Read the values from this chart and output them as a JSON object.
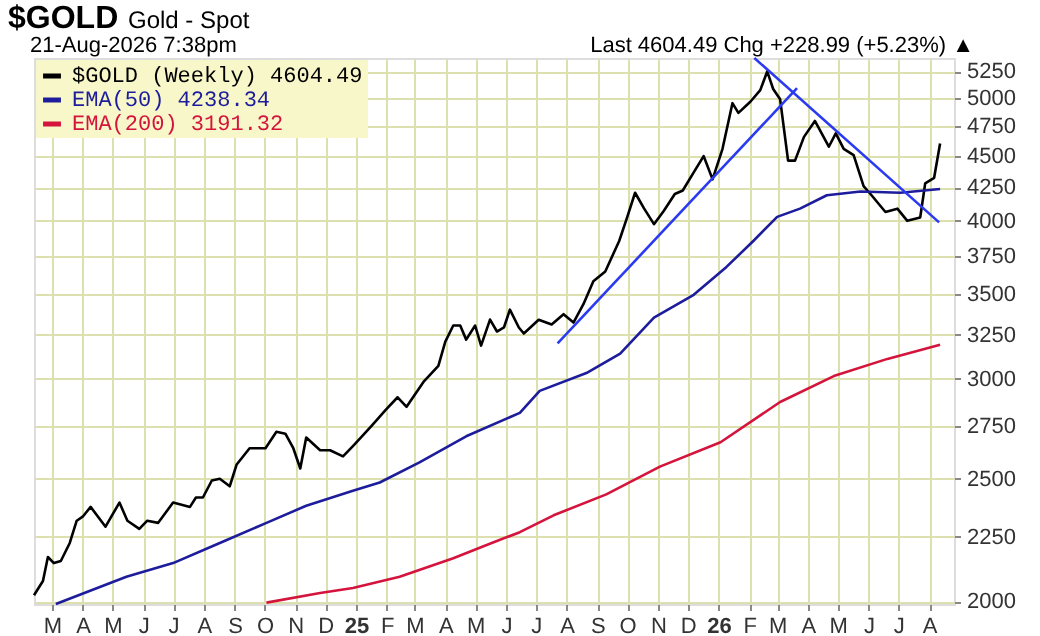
{
  "chart_data": {
    "type": "line",
    "title": "$GOLD",
    "subtitle": "Gold - Spot",
    "annotations": [
      "21-Aug-2026 7:38pm",
      "Last 4604.49  Chg +228.99 (+5.23%) ▲"
    ],
    "series": [
      {
        "name": "$GOLD (Weekly) 4604.49",
        "color": "#000000",
        "x": [
          "2024-02-12",
          "2024-02-21",
          "2024-02-26",
          "2024-03-03",
          "2024-03-10",
          "2024-03-19",
          "2024-03-26",
          "2024-04-01",
          "2024-04-09",
          "2024-04-24",
          "2024-05-08",
          "2024-05-16",
          "2024-05-28",
          "2024-06-05",
          "2024-06-16",
          "2024-07-01",
          "2024-07-18",
          "2024-07-24",
          "2024-07-31",
          "2024-08-09",
          "2024-08-17",
          "2024-08-27",
          "2024-09-03",
          "2024-09-16",
          "2024-10-02",
          "2024-10-13",
          "2024-10-22",
          "2024-10-30",
          "2024-11-06",
          "2024-11-12",
          "2024-11-26",
          "2024-12-06",
          "2024-12-19",
          "2024-12-29",
          "2025-01-08",
          "2025-01-17",
          "2025-01-31",
          "2025-02-12",
          "2025-02-21",
          "2025-03-10",
          "2025-03-25",
          "2025-04-01",
          "2025-04-09",
          "2025-04-16",
          "2025-04-22",
          "2025-05-01",
          "2025-05-07",
          "2025-05-16",
          "2025-05-23",
          "2025-05-30",
          "2025-06-05",
          "2025-06-14",
          "2025-06-19",
          "2025-07-04",
          "2025-07-17",
          "2025-07-29",
          "2025-08-08",
          "2025-08-18",
          "2025-08-28",
          "2025-09-09",
          "2025-09-23",
          "2025-10-01",
          "2025-10-09",
          "2025-10-18",
          "2025-10-28",
          "2025-11-07",
          "2025-11-18",
          "2025-11-26",
          "2025-12-07",
          "2025-12-17",
          "2025-12-26",
          "2026-01-05",
          "2026-01-15",
          "2026-01-21",
          "2026-02-02",
          "2026-02-12",
          "2026-02-19",
          "2026-02-25",
          "2026-03-04",
          "2026-03-12",
          "2026-03-19",
          "2026-03-28",
          "2026-04-08",
          "2026-04-22",
          "2026-04-29",
          "2026-05-07",
          "2026-05-17",
          "2026-05-27",
          "2026-06-04",
          "2026-06-18",
          "2026-06-30",
          "2026-07-10",
          "2026-07-23",
          "2026-07-28",
          "2026-08-06",
          "2026-08-12"
        ],
        "values": [
          2022,
          2075,
          2168,
          2144,
          2152,
          2224,
          2316,
          2333,
          2375,
          2291,
          2394,
          2316,
          2282,
          2316,
          2307,
          2394,
          2375,
          2416,
          2416,
          2492,
          2500,
          2466,
          2566,
          2643,
          2643,
          2723,
          2714,
          2643,
          2547,
          2695,
          2633,
          2633,
          2604,
          2653,
          2705,
          2754,
          2834,
          2900,
          2850,
          2982,
          3071,
          3209,
          3305,
          3305,
          3221,
          3305,
          3186,
          3341,
          3269,
          3293,
          3402,
          3293,
          3257,
          3340,
          3311,
          3374,
          3323,
          3436,
          3582,
          3647,
          3855,
          4024,
          4209,
          4091,
          3975,
          4073,
          4200,
          4226,
          4368,
          4500,
          4313,
          4560,
          4955,
          4868,
          4968,
          5074,
          5250,
          5085,
          4990,
          4463,
          4463,
          4660,
          4797,
          4577,
          4690,
          4560,
          4507,
          4260,
          4190,
          4064,
          4089,
          3999,
          4024,
          4281,
          4325,
          4604
        ]
      },
      {
        "name": "EMA(50) 4238.34",
        "color": "#1c1c9c",
        "x": [
          "2024-03-05",
          "2024-05-15",
          "2024-07-01",
          "2024-08-17",
          "2024-10-03",
          "2024-11-12",
          "2024-12-29",
          "2025-01-25",
          "2025-03-06",
          "2025-04-22",
          "2025-06-15",
          "2025-07-05",
          "2025-08-21",
          "2025-09-24",
          "2025-10-28",
          "2025-12-07",
          "2026-01-09",
          "2026-02-05",
          "2026-03-01",
          "2026-03-24",
          "2026-04-20",
          "2026-05-24",
          "2026-07-03",
          "2026-08-12"
        ],
        "values": [
          1990,
          2091,
          2144,
          2224,
          2307,
          2380,
          2446,
          2483,
          2576,
          2701,
          2819,
          2934,
          3031,
          3140,
          3353,
          3495,
          3677,
          3855,
          4028,
          4089,
          4190,
          4219,
          4209,
          4238
        ]
      },
      {
        "name": "EMA(200) 3191.32",
        "color": "#d4143c",
        "x": [
          "2024-10-03",
          "2024-11-26",
          "2024-12-29",
          "2025-02-14",
          "2025-04-09",
          "2025-05-19",
          "2025-06-15",
          "2025-07-19",
          "2025-09-10",
          "2025-11-03",
          "2026-01-03",
          "2026-03-04",
          "2026-04-27",
          "2026-06-20",
          "2026-08-12"
        ],
        "values": [
          1995,
          2030,
          2049,
          2091,
          2163,
          2226,
          2268,
          2339,
          2430,
          2556,
          2672,
          2875,
          3014,
          3110,
          3191
        ]
      },
      {
        "type": "line",
        "color": "#2b3af0",
        "x": [
          "2025-07-23",
          "2026-03-21"
        ],
        "values": [
          3199,
          5092
        ]
      },
      {
        "type": "line",
        "color": "#2b3af0",
        "x": [
          "2026-02-06",
          "2026-08-11"
        ],
        "values": [
          5380,
          3988
        ]
      }
    ],
    "xlim": [
      "2024-02-12",
      "2026-08-26"
    ],
    "xticks": [
      {
        "value": "2024-03-01",
        "label": "M"
      },
      {
        "value": "2024-04-01",
        "label": "A"
      },
      {
        "value": "2024-05-01",
        "label": "M"
      },
      {
        "value": "2024-06-01",
        "label": "J"
      },
      {
        "value": "2024-07-01",
        "label": "J"
      },
      {
        "value": "2024-08-01",
        "label": "A"
      },
      {
        "value": "2024-09-01",
        "label": "S"
      },
      {
        "value": "2024-10-01",
        "label": "O"
      },
      {
        "value": "2024-11-01",
        "label": "N"
      },
      {
        "value": "2024-12-01",
        "label": "D"
      },
      {
        "value": "2025-01-01",
        "label": "25"
      },
      {
        "value": "2025-02-01",
        "label": "F"
      },
      {
        "value": "2025-03-01",
        "label": "M"
      },
      {
        "value": "2025-04-01",
        "label": "A"
      },
      {
        "value": "2025-05-01",
        "label": "M"
      },
      {
        "value": "2025-06-01",
        "label": "J"
      },
      {
        "value": "2025-07-01",
        "label": "J"
      },
      {
        "value": "2025-08-01",
        "label": "A"
      },
      {
        "value": "2025-09-01",
        "label": "S"
      },
      {
        "value": "2025-10-01",
        "label": "O"
      },
      {
        "value": "2025-11-01",
        "label": "N"
      },
      {
        "value": "2025-12-01",
        "label": "D"
      },
      {
        "value": "2026-01-01",
        "label": "26"
      },
      {
        "value": "2026-02-01",
        "label": "F"
      },
      {
        "value": "2026-03-01",
        "label": "M"
      },
      {
        "value": "2026-04-01",
        "label": "A"
      },
      {
        "value": "2026-05-01",
        "label": "M"
      },
      {
        "value": "2026-06-01",
        "label": "J"
      },
      {
        "value": "2026-07-01",
        "label": "J"
      },
      {
        "value": "2026-08-01",
        "label": "A"
      }
    ],
    "ylim": [
      1990,
      5380
    ],
    "yticks": [
      2000,
      2250,
      2500,
      2750,
      3000,
      3250,
      3500,
      3750,
      4000,
      4250,
      4500,
      4750,
      5000,
      5250
    ],
    "log": "y",
    "grid": true,
    "legend": "top left"
  }
}
